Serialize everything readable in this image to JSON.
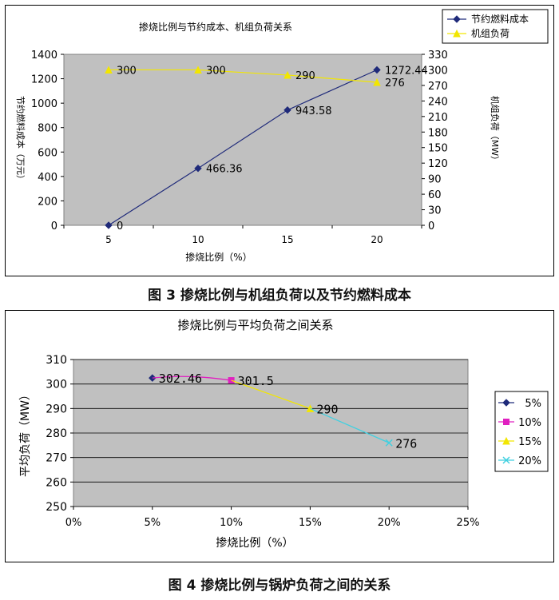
{
  "chart_data": [
    {
      "type": "line",
      "title": "掺烧比例与节约成本、机组负荷关系",
      "xlabel": "掺烧比例（%）",
      "ylabel": "节约燃料成本（万元）",
      "ylabel_right": "机组负荷（MW）",
      "categories": [
        "5",
        "10",
        "15",
        "20"
      ],
      "ylim": [
        0,
        1400
      ],
      "yticks": [
        "0",
        "200",
        "400",
        "600",
        "800",
        "1000",
        "1200",
        "1400"
      ],
      "ylim_right": [
        0,
        330
      ],
      "yticks_right": [
        "0",
        "30",
        "60",
        "90",
        "120",
        "150",
        "180",
        "210",
        "240",
        "270",
        "300",
        "330"
      ],
      "series": [
        {
          "name": "节约燃料成本",
          "axis": "left",
          "values": [
            0,
            466.36,
            943.58,
            1272.44
          ],
          "labels": [
            "0",
            "466.36",
            "943.58",
            "1272.44"
          ],
          "color": "#1f2a7a",
          "marker": "diamond"
        },
        {
          "name": "机组负荷",
          "axis": "right",
          "values": [
            300,
            300,
            290,
            276
          ],
          "labels": [
            "300",
            "300",
            "290",
            "276"
          ],
          "color": "#f2e600",
          "marker": "triangle"
        }
      ],
      "plot_bg": "#c0c0c0",
      "legend": "top-right"
    },
    {
      "type": "line",
      "title": "掺烧比例与平均负荷之间关系",
      "xlabel": "掺烧比例（%）",
      "ylabel": "平均负荷（MW）",
      "xlim": [
        0,
        25
      ],
      "xticks": [
        "0%",
        "5%",
        "10%",
        "15%",
        "20%",
        "25%"
      ],
      "ylim": [
        250,
        310
      ],
      "yticks": [
        "250",
        "260",
        "270",
        "280",
        "290",
        "300",
        "310"
      ],
      "point_labels": [
        "302.46",
        "301.5",
        "290",
        "276"
      ],
      "series": [
        {
          "name": "5%",
          "x": [
            5
          ],
          "values": [
            302.46
          ],
          "color": "#1f2a7a",
          "marker": "diamond"
        },
        {
          "name": "10%",
          "x": [
            5,
            10
          ],
          "values": [
            302.46,
            301.5
          ],
          "color": "#e020c0",
          "marker": "square"
        },
        {
          "name": "15%",
          "x": [
            10,
            15
          ],
          "values": [
            301.5,
            290
          ],
          "color": "#f2e600",
          "marker": "triangle"
        },
        {
          "name": "20%",
          "x": [
            15,
            20
          ],
          "values": [
            290,
            276
          ],
          "color": "#40d0e0",
          "marker": "x"
        }
      ],
      "plot_bg": "#c0c0c0",
      "legend": "right"
    }
  ],
  "captions": {
    "fig3": "图 3  掺烧比例与机组负荷以及节约燃料成本",
    "fig4": "图 4  掺烧比例与锅炉负荷之间的关系"
  }
}
